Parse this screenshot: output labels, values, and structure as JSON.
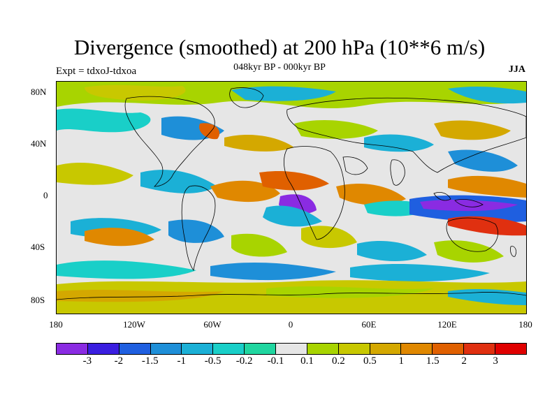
{
  "title": "Divergence (smoothed) at 200 hPa (10**6 m/s)",
  "subtitle": "048kyr BP - 000kyr BP",
  "experiment": "Expt = tdxoJ-tdxoa",
  "season": "JJA",
  "lat_labels": [
    "80N",
    "40N",
    "0",
    "40S",
    "80S"
  ],
  "lon_labels": [
    "180",
    "120W",
    "60W",
    "0",
    "60E",
    "120E",
    "180"
  ],
  "colorbar": {
    "labels": [
      "-3",
      "-2",
      "-1.5",
      "-1",
      "-0.5",
      "-0.2",
      "-0.1",
      "0.1",
      "0.2",
      "0.5",
      "1",
      "1.5",
      "2",
      "3"
    ],
    "colors": [
      "#8a2be2",
      "#3a1ee0",
      "#1f5fe0",
      "#1e8fd8",
      "#1bb0d6",
      "#19cfc8",
      "#20d6a0",
      "#e6e6e6",
      "#a8d400",
      "#c8c800",
      "#d4a800",
      "#e08800",
      "#e06000",
      "#e03010",
      "#e00000"
    ]
  },
  "map": {
    "lat_range": [
      -90,
      90
    ],
    "lon_range": [
      -180,
      180
    ],
    "fill_colors": {
      "neutral": "#e6e6e6",
      "weak_pos": "#a8d400",
      "mod_pos": "#c8c800",
      "pos": "#d4a800",
      "strong_pos": "#e08800",
      "vstrong_pos": "#e06000",
      "weak_neg": "#20d6a0",
      "neg": "#19cfc8",
      "mod_neg": "#1bb0d6",
      "strong_neg": "#1e8fd8",
      "vstrong_neg": "#1f5fe0",
      "extreme_neg": "#8a2be2"
    }
  }
}
